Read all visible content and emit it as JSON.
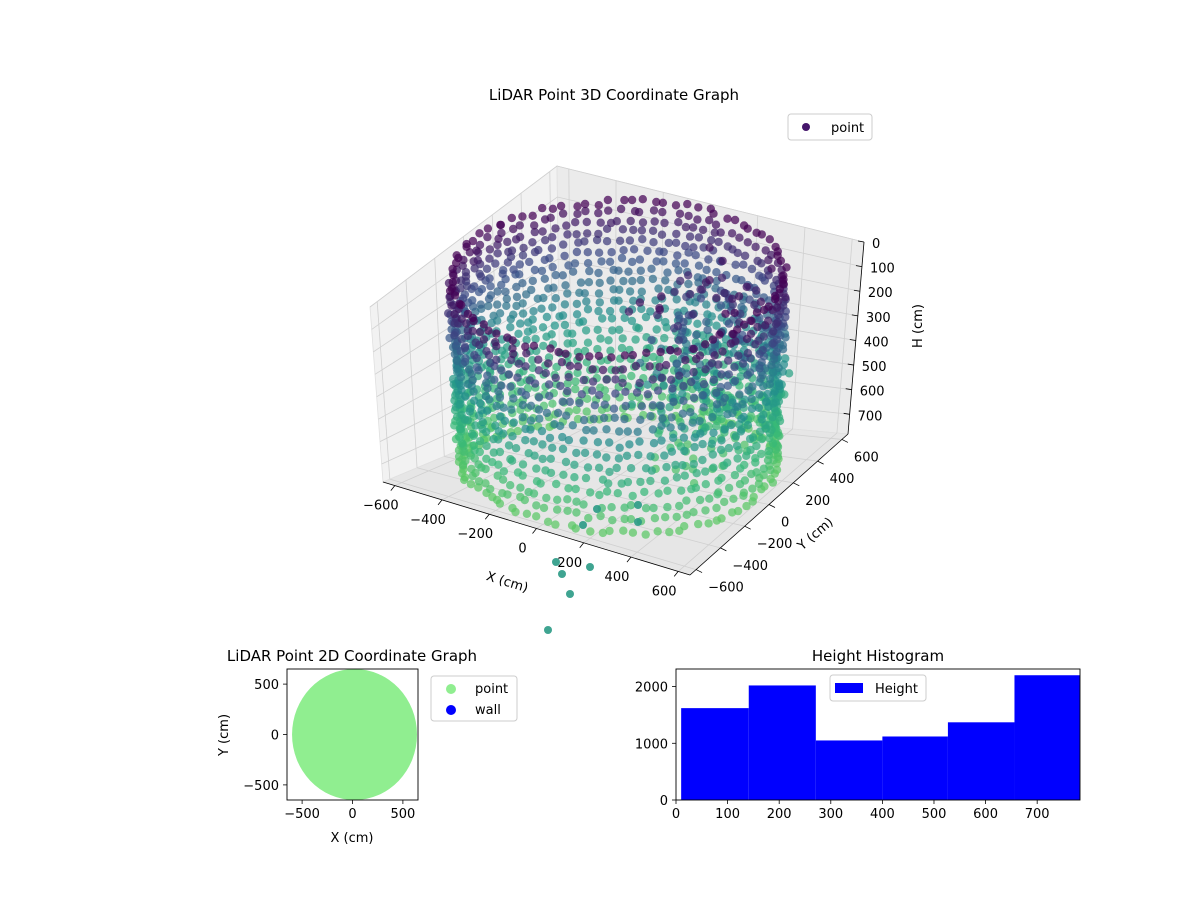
{
  "chart_data": [
    {
      "type": "scatter3d",
      "title": "LiDAR Point 3D Coordinate Graph",
      "xlabel": "X (cm)",
      "ylabel": "Y (cm)",
      "zlabel": "H (cm)",
      "xlim": [
        -650,
        650
      ],
      "ylim": [
        -650,
        650
      ],
      "zlim": [
        780,
        0
      ],
      "x_ticks": [
        "−600",
        "−400",
        "−200",
        "0",
        "200",
        "400",
        "600"
      ],
      "y_ticks": [
        "−600",
        "−400",
        "−200",
        "0",
        "200",
        "400",
        "600"
      ],
      "z_ticks": [
        "0",
        "100",
        "200",
        "300",
        "400",
        "500",
        "600",
        "700"
      ],
      "colormap": "viridis",
      "legend": {
        "entries": [
          "point"
        ],
        "placement": "top-right"
      },
      "series": [
        {
          "name": "point",
          "color": "#45166b",
          "description_shape": "cylindrical wall of points, radius ≈ 600 cm, height 0–780 cm, colored by height"
        }
      ],
      "grid": true
    },
    {
      "type": "scatter",
      "title": "LiDAR Point 2D Coordinate Graph",
      "xlabel": "X (cm)",
      "ylabel": "Y (cm)",
      "xlim": [
        -650,
        650
      ],
      "ylim": [
        -650,
        650
      ],
      "x_ticks": [
        "−500",
        "0",
        "500"
      ],
      "y_ticks": [
        "−500",
        "0",
        "500"
      ],
      "legend": {
        "entries": [
          "point",
          "wall"
        ],
        "placement": "outside-right"
      },
      "series": [
        {
          "name": "point",
          "color": "#90ee90",
          "shape": "disk",
          "center": [
            20,
            0
          ],
          "radius_x": 620,
          "radius_y": 650
        },
        {
          "name": "wall",
          "color": "#0000ff"
        }
      ],
      "grid": false
    },
    {
      "type": "bar",
      "title": "Height Histogram",
      "legend": {
        "entries": [
          "Height"
        ],
        "placement": "upper-center"
      },
      "bar_color": "#0000ff",
      "bins": [
        {
          "start": 10,
          "end": 141,
          "value": 1620
        },
        {
          "start": 141,
          "end": 271,
          "value": 2020
        },
        {
          "start": 271,
          "end": 400,
          "value": 1050
        },
        {
          "start": 400,
          "end": 527,
          "value": 1120
        },
        {
          "start": 527,
          "end": 656,
          "value": 1370
        },
        {
          "start": 656,
          "end": 783,
          "value": 2200
        }
      ],
      "xlim": [
        0,
        783
      ],
      "ylim": [
        0,
        2310
      ],
      "x_ticks": [
        0,
        100,
        200,
        300,
        400,
        500,
        600,
        700
      ],
      "y_ticks": [
        0,
        1000,
        2000
      ],
      "series": [
        {
          "name": "Height"
        }
      ]
    }
  ]
}
